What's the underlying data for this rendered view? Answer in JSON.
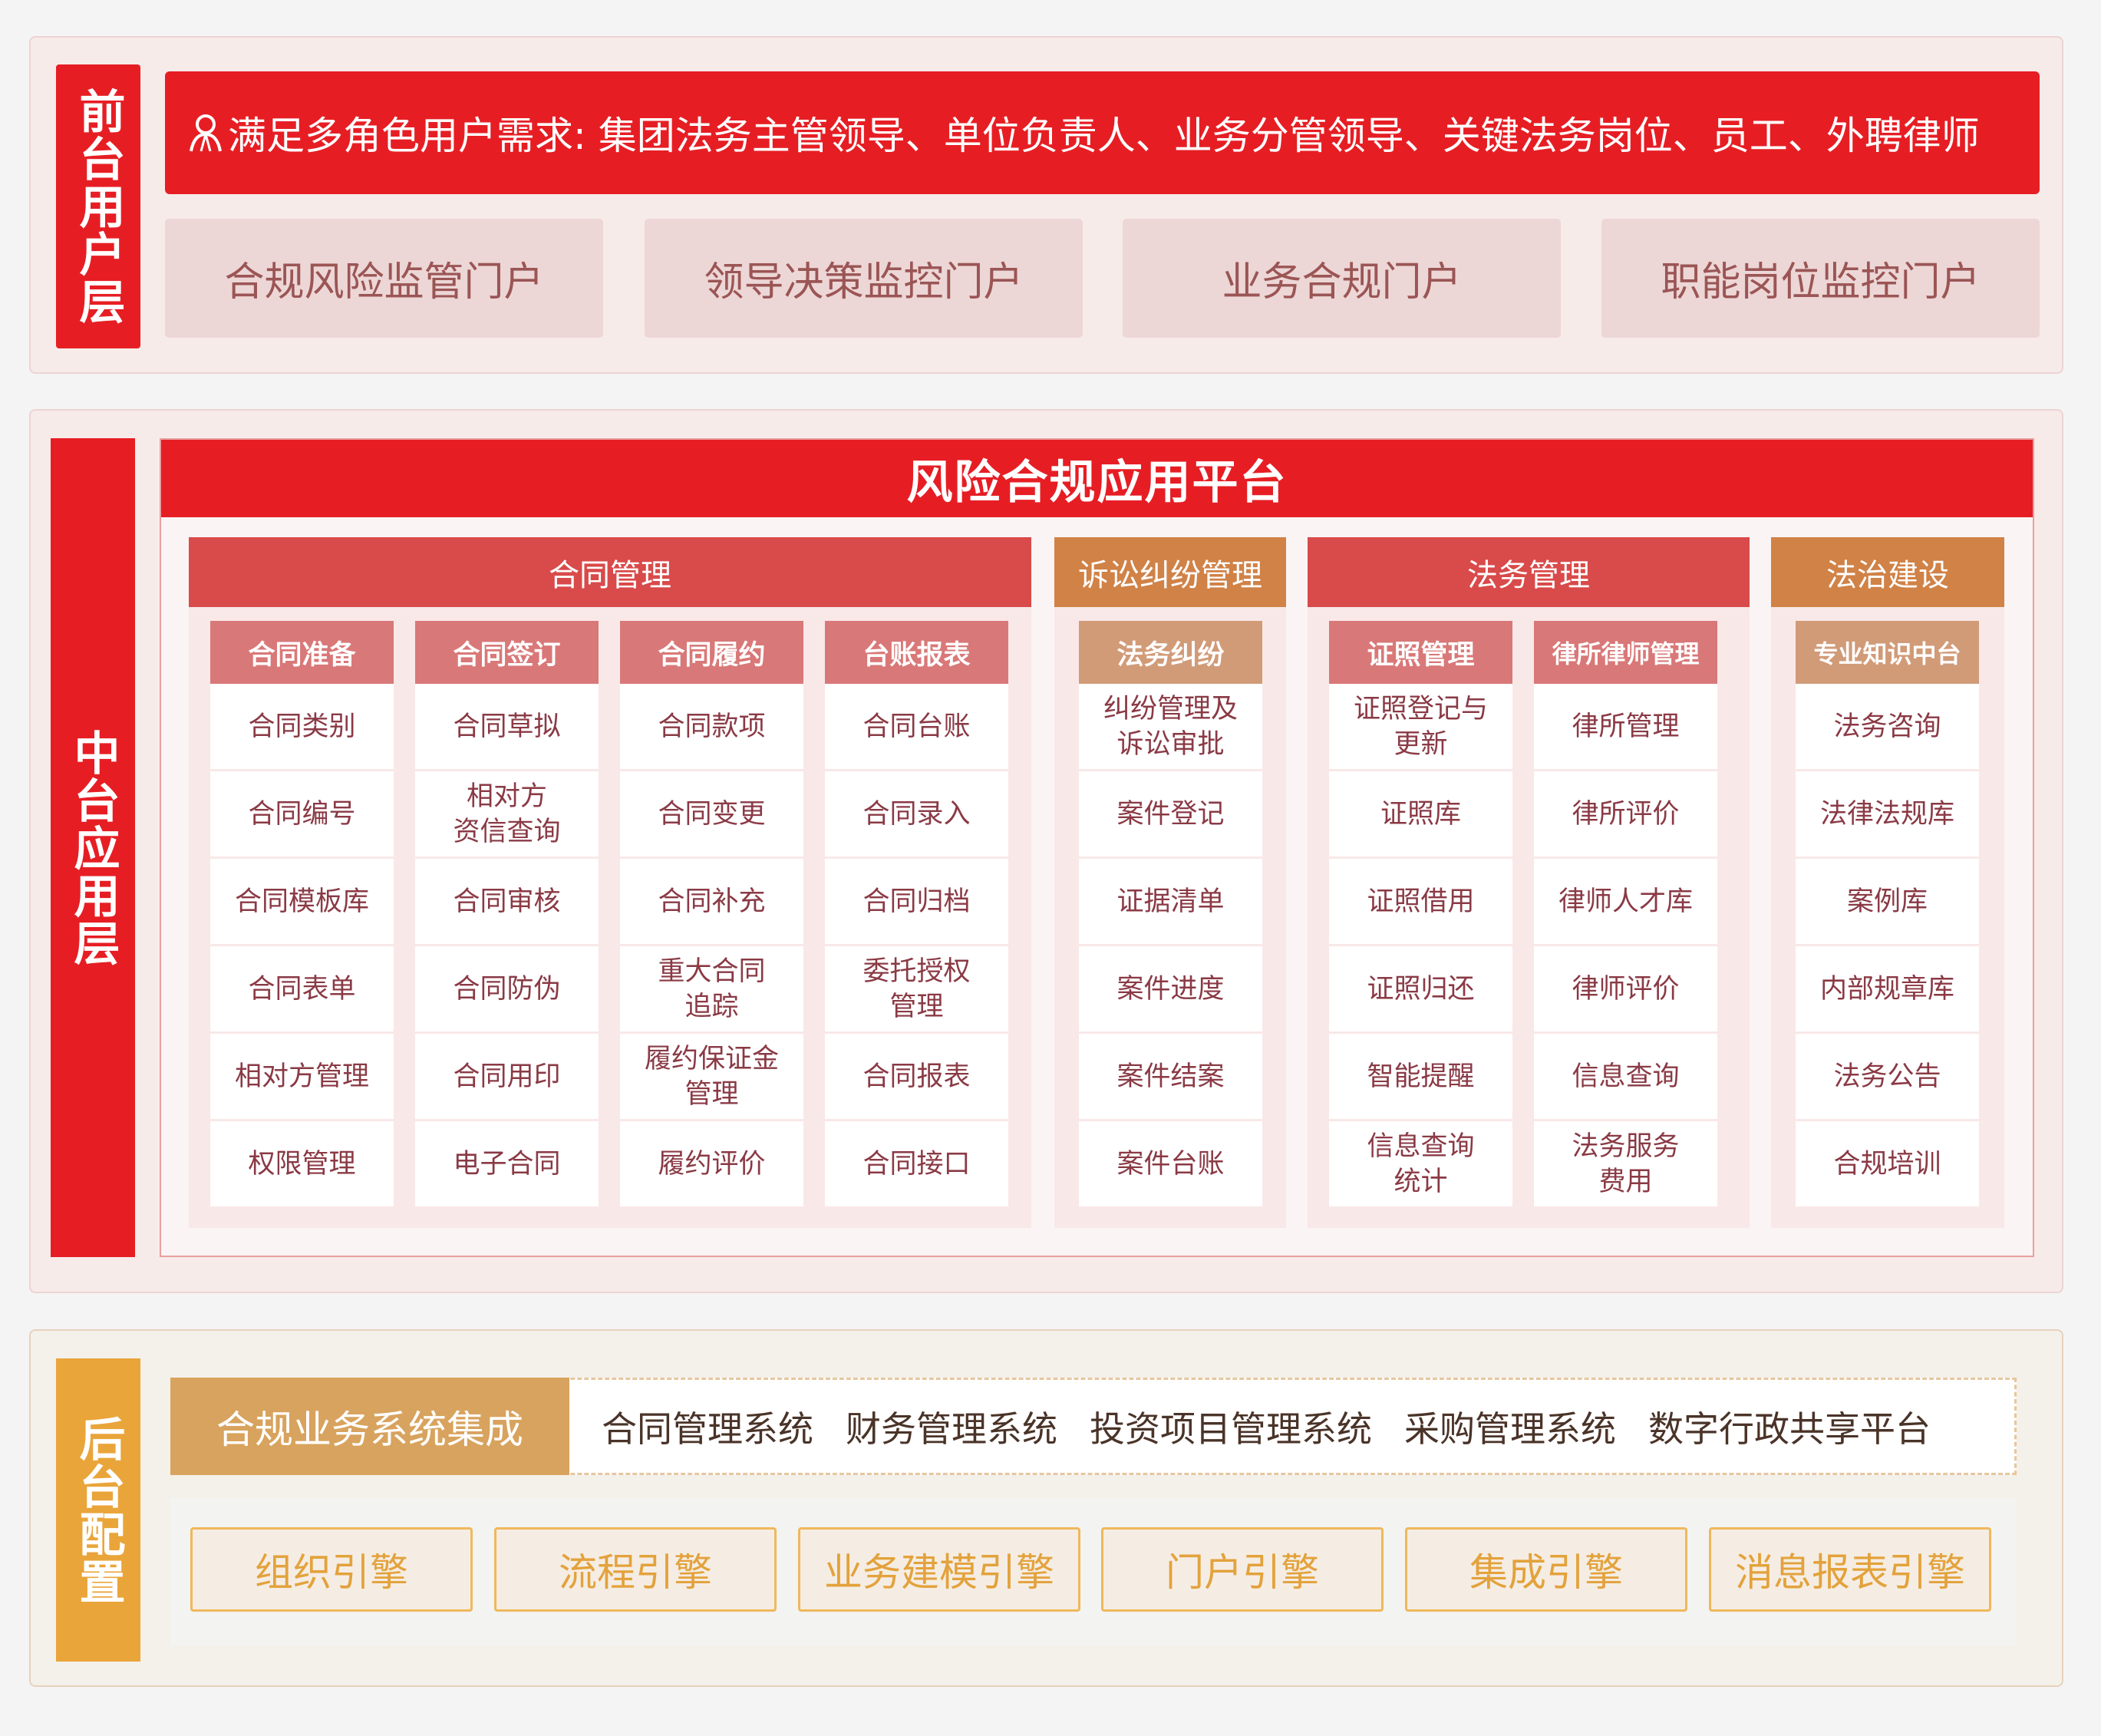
{
  "colors": {
    "primary_red": "#e61e24",
    "group_red": "#d94a4a",
    "group_orange": "#d08247",
    "subhead_pink": "#d97878",
    "subhead_tan": "#d19b78",
    "backend_orange": "#e9a53a",
    "integration_tan": "#d8a35e"
  },
  "front": {
    "layer_label": "前台用户层",
    "banner_icon": "user-icon",
    "banner": "满足多角色用户需求: 集团法务主管领导、单位负责人、业务分管领导、关键法务岗位、员工、外聘律师",
    "portals": [
      "合规风险监管门户",
      "领导决策监控门户",
      "业务合规门户",
      "职能岗位监控门户"
    ]
  },
  "middle": {
    "layer_label": "中台应用层",
    "platform_title": "风险合规应用平台",
    "groups": [
      {
        "title": "合同管理",
        "style": "red",
        "columns": [
          {
            "title": "合同准备",
            "items": [
              "合同类别",
              "合同编号",
              "合同模板库",
              "合同表单",
              "相对方管理",
              "权限管理"
            ]
          },
          {
            "title": "合同签订",
            "items": [
              "合同草拟",
              "相对方\n资信查询",
              "合同审核",
              "合同防伪",
              "合同用印",
              "电子合同"
            ]
          },
          {
            "title": "合同履约",
            "items": [
              "合同款项",
              "合同变更",
              "合同补充",
              "重大合同\n追踪",
              "履约保证金\n管理",
              "履约评价"
            ]
          },
          {
            "title": "台账报表",
            "items": [
              "合同台账",
              "合同录入",
              "合同归档",
              "委托授权\n管理",
              "合同报表",
              "合同接口"
            ]
          }
        ]
      },
      {
        "title": "诉讼纠纷管理",
        "style": "orange",
        "columns": [
          {
            "title": "法务纠纷",
            "items": [
              "纠纷管理及\n诉讼审批",
              "案件登记",
              "证据清单",
              "案件进度",
              "案件结案",
              "案件台账"
            ]
          }
        ]
      },
      {
        "title": "法务管理",
        "style": "red",
        "columns": [
          {
            "title": "证照管理",
            "items": [
              "证照登记与\n更新",
              "证照库",
              "证照借用",
              "证照归还",
              "智能提醒",
              "信息查询\n统计"
            ]
          },
          {
            "title": "律所律师管理",
            "items": [
              "律所管理",
              "律所评价",
              "律师人才库",
              "律师评价",
              "信息查询",
              "法务服务\n费用"
            ]
          }
        ]
      },
      {
        "title": "法治建设",
        "style": "orange",
        "columns": [
          {
            "title": "专业知识中台",
            "items": [
              "法务咨询",
              "法律法规库",
              "案例库",
              "内部规章库",
              "法务公告",
              "合规培训"
            ]
          }
        ]
      }
    ]
  },
  "back": {
    "layer_label": "后台配置",
    "integration_label": "合规业务系统集成",
    "systems": [
      "合同管理系统",
      "财务管理系统",
      "投资项目管理系统",
      "采购管理系统",
      "数字行政共享平台"
    ],
    "engines": [
      "组织引擎",
      "流程引擎",
      "业务建模引擎",
      "门户引擎",
      "集成引擎",
      "消息报表引擎"
    ]
  }
}
